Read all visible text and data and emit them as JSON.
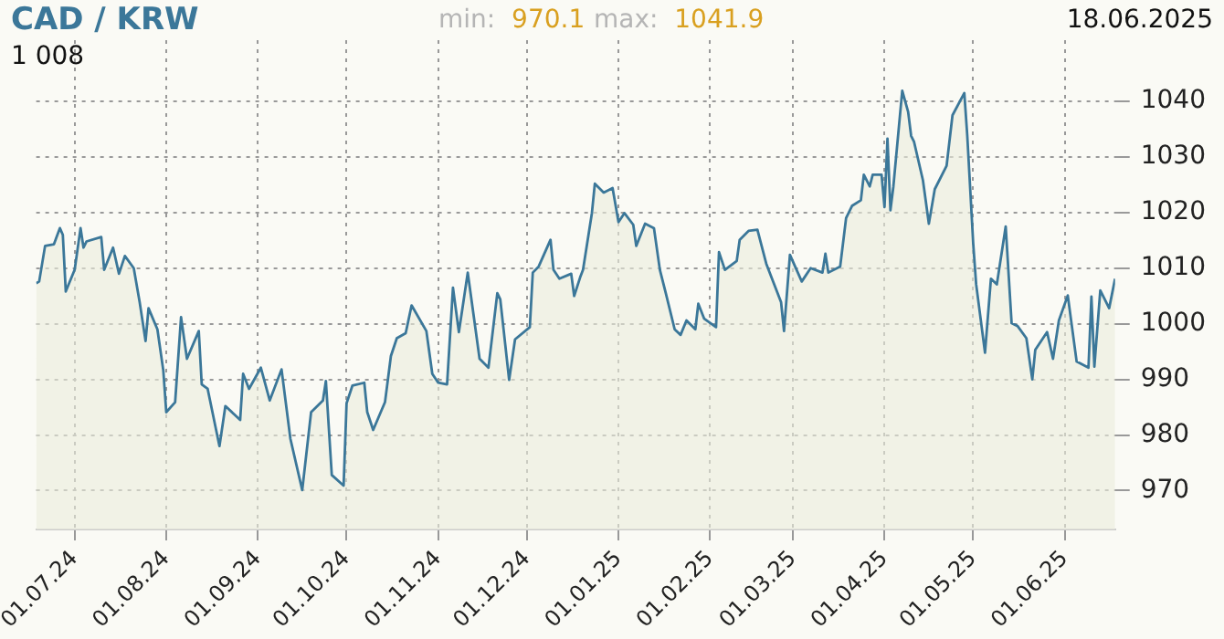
{
  "chart_data": {
    "type": "area",
    "title": "CAD / KRW",
    "annotations": [
      "min: 970.1",
      "max: 1041.9",
      "18.06.2025",
      "1 008"
    ],
    "x": [
      "2024-06-18",
      "2024-06-19",
      "2024-06-21",
      "2024-06-24",
      "2024-06-26",
      "2024-06-27",
      "2024-06-28",
      "2024-07-01",
      "2024-07-03",
      "2024-07-04",
      "2024-07-05",
      "2024-07-10",
      "2024-07-11",
      "2024-07-14",
      "2024-07-16",
      "2024-07-18",
      "2024-07-21",
      "2024-07-23",
      "2024-07-25",
      "2024-07-26",
      "2024-07-29",
      "2024-07-31",
      "2024-08-01",
      "2024-08-04",
      "2024-08-06",
      "2024-08-08",
      "2024-08-12",
      "2024-08-13",
      "2024-08-15",
      "2024-08-19",
      "2024-08-21",
      "2024-08-26",
      "2024-08-27",
      "2024-08-29",
      "2024-09-02",
      "2024-09-05",
      "2024-09-09",
      "2024-09-12",
      "2024-09-16",
      "2024-09-19",
      "2024-09-23",
      "2024-09-24",
      "2024-09-26",
      "2024-09-30",
      "2024-10-01",
      "2024-10-03",
      "2024-10-07",
      "2024-10-08",
      "2024-10-10",
      "2024-10-14",
      "2024-10-16",
      "2024-10-18",
      "2024-10-21",
      "2024-10-23",
      "2024-10-28",
      "2024-10-30",
      "2024-11-01",
      "2024-11-04",
      "2024-11-06",
      "2024-11-08",
      "2024-11-11",
      "2024-11-15",
      "2024-11-18",
      "2024-11-21",
      "2024-11-22",
      "2024-11-25",
      "2024-11-27",
      "2024-12-02",
      "2024-12-03",
      "2024-12-05",
      "2024-12-09",
      "2024-12-10",
      "2024-12-12",
      "2024-12-16",
      "2024-12-17",
      "2024-12-19",
      "2024-12-20",
      "2024-12-23",
      "2024-12-24",
      "2024-12-27",
      "2024-12-30",
      "2025-01-01",
      "2025-01-03",
      "2025-01-06",
      "2025-01-07",
      "2025-01-10",
      "2025-01-13",
      "2025-01-15",
      "2025-01-17",
      "2025-01-20",
      "2025-01-22",
      "2025-01-24",
      "2025-01-27",
      "2025-01-28",
      "2025-01-30",
      "2025-02-03",
      "2025-02-04",
      "2025-02-06",
      "2025-02-10",
      "2025-02-11",
      "2025-02-14",
      "2025-02-17",
      "2025-02-20",
      "2025-02-25",
      "2025-02-26",
      "2025-02-28",
      "2025-03-04",
      "2025-03-07",
      "2025-03-11",
      "2025-03-12",
      "2025-03-13",
      "2025-03-17",
      "2025-03-19",
      "2025-03-21",
      "2025-03-24",
      "2025-03-25",
      "2025-03-27",
      "2025-03-28",
      "2025-03-31",
      "2025-04-01",
      "2025-04-02",
      "2025-04-03",
      "2025-04-04",
      "2025-04-07",
      "2025-04-09",
      "2025-04-10",
      "2025-04-11",
      "2025-04-14",
      "2025-04-16",
      "2025-04-18",
      "2025-04-22",
      "2025-04-24",
      "2025-04-28",
      "2025-04-29",
      "2025-05-01",
      "2025-05-02",
      "2025-05-05",
      "2025-05-07",
      "2025-05-09",
      "2025-05-12",
      "2025-05-14",
      "2025-05-16",
      "2025-05-19",
      "2025-05-21",
      "2025-05-22",
      "2025-05-26",
      "2025-05-28",
      "2025-05-30",
      "2025-06-02",
      "2025-06-05",
      "2025-06-09",
      "2025-06-10",
      "2025-06-11",
      "2025-06-13",
      "2025-06-16",
      "2025-06-18"
    ],
    "series": [
      {
        "color": "#3b7799",
        "values": [
          1007.3,
          1007.6,
          1014,
          1014.3,
          1017.2,
          1016,
          1005.8,
          1009.7,
          1017.2,
          1013.7,
          1014.8,
          1015.6,
          1009.7,
          1013.7,
          1009,
          1012.2,
          1010,
          1003.9,
          996.9,
          1002.8,
          999,
          991.6,
          984.1,
          985.9,
          1001.2,
          993.7,
          998.7,
          989.1,
          988.3,
          978,
          985.2,
          982.7,
          991,
          988.3,
          992.1,
          986.2,
          991.8,
          979.3,
          970.1,
          984.1,
          986.2,
          989.7,
          972.8,
          970.9,
          985.7,
          988.9,
          989.4,
          984.1,
          980.9,
          985.9,
          994.2,
          997.4,
          998.3,
          1003.3,
          998.7,
          991,
          989.4,
          989.1,
          1006.5,
          998.5,
          1009.2,
          993.7,
          992.1,
          1005.5,
          1004.4,
          989.9,
          997.2,
          999.4,
          1009.2,
          1010.3,
          1015.1,
          1009.7,
          1008.1,
          1009,
          1005,
          1008.3,
          1009.7,
          1019.9,
          1025.2,
          1023.6,
          1024.4,
          1018.3,
          1019.9,
          1017.8,
          1014,
          1018,
          1017.2,
          1009.7,
          1005.5,
          999,
          998,
          1000.6,
          999,
          1003.6,
          1000.9,
          999.4,
          1012.9,
          1009.7,
          1011.3,
          1015.1,
          1016.7,
          1016.9,
          1010.8,
          1003.9,
          998.7,
          1012.4,
          1007.6,
          1010,
          1009.2,
          1012.6,
          1009.2,
          1010.3,
          1019,
          1021.2,
          1022.2,
          1026.8,
          1024.7,
          1026.8,
          1026.8,
          1021,
          1033.3,
          1020.4,
          1024.7,
          1041.9,
          1038.1,
          1033.8,
          1032.7,
          1025.8,
          1018,
          1024.2,
          1028.4,
          1037.5,
          1041.5,
          1033.8,
          1014.5,
          1007.1,
          994.8,
          1008.1,
          1007.1,
          1017.5,
          1000.1,
          999.6,
          997.4,
          990,
          995.3,
          998.5,
          993.7,
          1000.6,
          1005.1,
          993.2,
          992.1,
          1004.9,
          992.3,
          1006,
          1002.8,
          1008.1
        ]
      }
    ],
    "xlim": [
      "2024-06-18",
      "2025-06-18"
    ],
    "xticks": [
      {
        "value": "2024-07-01",
        "label": "01.07.24"
      },
      {
        "value": "2024-08-01",
        "label": "01.08.24"
      },
      {
        "value": "2024-09-01",
        "label": "01.09.24"
      },
      {
        "value": "2024-10-01",
        "label": "01.10.24"
      },
      {
        "value": "2024-11-01",
        "label": "01.11.24"
      },
      {
        "value": "2024-12-01",
        "label": "01.12.24"
      },
      {
        "value": "2025-01-01",
        "label": "01.01.25"
      },
      {
        "value": "2025-02-01",
        "label": "01.02.25"
      },
      {
        "value": "2025-03-01",
        "label": "01.03.25"
      },
      {
        "value": "2025-04-01",
        "label": "01.04.25"
      },
      {
        "value": "2025-05-01",
        "label": "01.05.25"
      },
      {
        "value": "2025-06-01",
        "label": "01.06.25"
      }
    ],
    "ylim": [
      963,
      1051
    ],
    "yticks": [
      970,
      980,
      990,
      1000,
      1010,
      1020,
      1030,
      1040
    ],
    "grid": true,
    "legend": false,
    "marker": "none",
    "line_style": "solid"
  }
}
